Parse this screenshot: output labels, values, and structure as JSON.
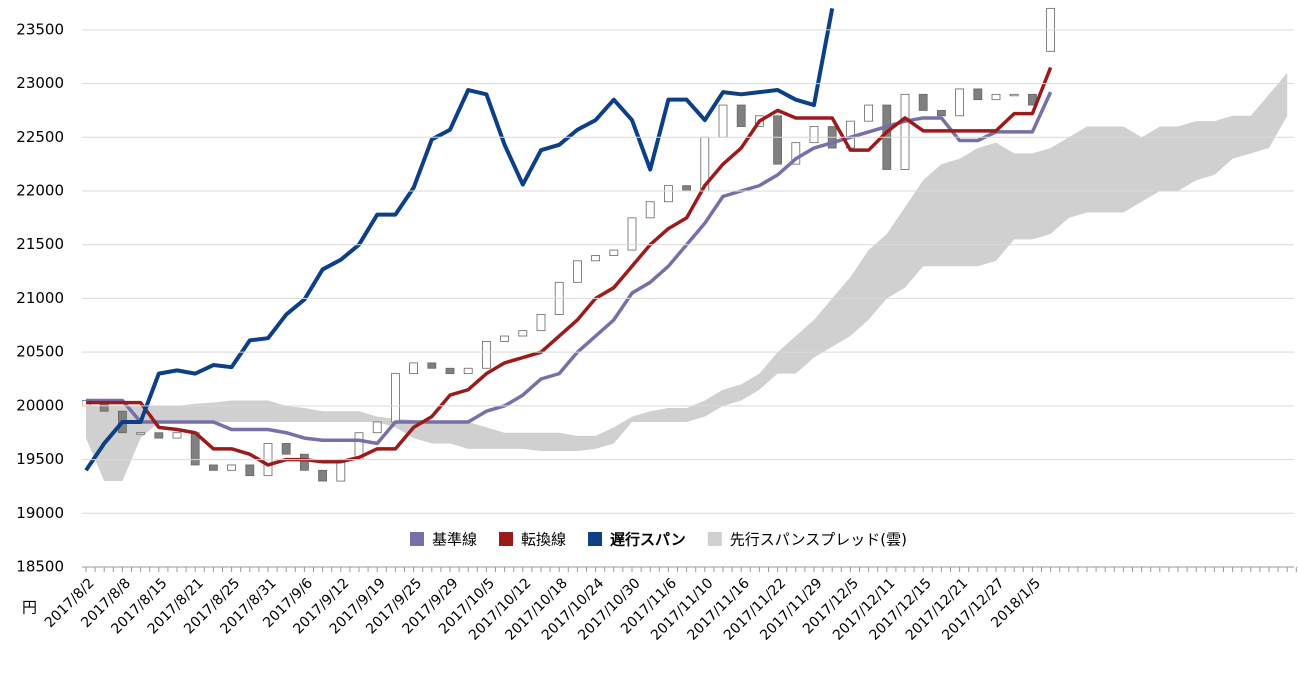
{
  "chart_data": {
    "type": "ichimoku",
    "y_unit": "円",
    "categories": [
      "2017/8/2",
      null,
      "2017/8/8",
      null,
      "2017/8/15",
      null,
      "2017/8/21",
      null,
      "2017/8/25",
      null,
      "2017/8/31",
      null,
      "2017/9/6",
      null,
      "2017/9/12",
      null,
      "2017/9/19",
      null,
      "2017/9/25",
      null,
      "2017/9/29",
      null,
      "2017/10/5",
      null,
      "2017/10/12",
      null,
      "2017/10/18",
      null,
      "2017/10/24",
      null,
      "2017/10/30",
      null,
      "2017/11/6",
      null,
      "2017/11/10",
      null,
      "2017/11/16",
      null,
      "2017/11/22",
      null,
      "2017/11/29",
      null,
      "2017/12/5",
      null,
      "2017/12/11",
      null,
      "2017/12/15",
      null,
      "2017/12/21",
      null,
      "2017/12/27",
      null,
      "2018/1/5",
      null,
      null,
      null,
      null,
      null,
      null,
      null,
      null,
      null,
      null,
      null,
      null,
      null,
      null
    ],
    "ylim": [
      18500,
      23750
    ],
    "yticks": [
      18500,
      19000,
      19500,
      20000,
      20500,
      21000,
      21500,
      22000,
      22500,
      23000,
      23500
    ],
    "grid": true,
    "candles": {
      "up_color": "#ffffff",
      "down_color": "#808080",
      "open": [
        20000,
        20050,
        19950,
        19750,
        19750,
        19700,
        19750,
        19450,
        19400,
        19450,
        19350,
        19650,
        19550,
        19400,
        19300,
        19500,
        19750,
        19850,
        20300,
        20400,
        20350,
        20300,
        20350,
        20600,
        20650,
        20700,
        20850,
        21150,
        21350,
        21400,
        21450,
        21750,
        21900,
        22050,
        22000,
        22500,
        22800,
        22600,
        22700,
        22250,
        22450,
        22600,
        22400,
        22650,
        22800,
        22200,
        22900,
        22750,
        22700,
        22950,
        22850,
        22900,
        22900,
        23300,
        null,
        null,
        null,
        null,
        null,
        null,
        null,
        null,
        null,
        null,
        null,
        null,
        null
      ],
      "close": [
        20050,
        19950,
        19750,
        19750,
        19700,
        19750,
        19450,
        19400,
        19450,
        19350,
        19650,
        19550,
        19400,
        19300,
        19500,
        19750,
        19850,
        20300,
        20400,
        20350,
        20300,
        20350,
        20600,
        20650,
        20700,
        20850,
        21150,
        21350,
        21400,
        21450,
        21750,
        21900,
        22050,
        22000,
        22500,
        22800,
        22600,
        22700,
        22250,
        22450,
        22600,
        22400,
        22650,
        22800,
        22200,
        22900,
        22750,
        22700,
        22950,
        22850,
        22900,
        22900,
        22800,
        23700,
        null,
        null,
        null,
        null,
        null,
        null,
        null,
        null,
        null,
        null,
        null,
        null,
        null
      ]
    },
    "series": [
      {
        "name": "基準線",
        "color": "#7570a8",
        "values": [
          20050,
          20050,
          20050,
          19850,
          19850,
          19850,
          19850,
          19850,
          19780,
          19780,
          19780,
          19750,
          19700,
          19680,
          19680,
          19680,
          19650,
          19850,
          19850,
          19850,
          19850,
          19850,
          19950,
          20000,
          20100,
          20250,
          20300,
          20500,
          20650,
          20800,
          21050,
          21150,
          21300,
          21500,
          21700,
          21950,
          22000,
          22050,
          22150,
          22300,
          22400,
          22450,
          22500,
          22550,
          22600,
          22650,
          22680,
          22680,
          22470,
          22470,
          22550,
          22550,
          22550,
          22920,
          null,
          null,
          null,
          null,
          null,
          null,
          null,
          null,
          null,
          null,
          null,
          null,
          null
        ]
      },
      {
        "name": "転換線",
        "color": "#9b1b1b",
        "values": [
          20030,
          20030,
          20030,
          20030,
          19800,
          19780,
          19750,
          19600,
          19600,
          19550,
          19450,
          19500,
          19500,
          19480,
          19480,
          19520,
          19600,
          19600,
          19800,
          19900,
          20100,
          20150,
          20300,
          20400,
          20450,
          20500,
          20650,
          20800,
          21000,
          21100,
          21300,
          21500,
          21650,
          21750,
          22050,
          22250,
          22400,
          22650,
          22750,
          22680,
          22680,
          22680,
          22380,
          22380,
          22550,
          22680,
          22560,
          22560,
          22560,
          22560,
          22560,
          22720,
          22720,
          23150,
          null,
          null,
          null,
          null,
          null,
          null,
          null,
          null,
          null,
          null,
          null,
          null,
          null
        ]
      },
      {
        "name": "遅行スパン",
        "color": "#0d3f86",
        "values": [
          19400,
          19650,
          19850,
          19850,
          20300,
          20330,
          20300,
          20380,
          20360,
          20610,
          20630,
          20850,
          20990,
          21270,
          21360,
          21500,
          21780,
          21780,
          22030,
          22480,
          22570,
          22940,
          22900,
          22430,
          22060,
          22380,
          22430,
          22570,
          22660,
          22850,
          22660,
          22200,
          22850,
          22850,
          22660,
          22920,
          22900,
          22920,
          22940,
          22850,
          22800,
          23700,
          null,
          null,
          null,
          null,
          null,
          null,
          null,
          null,
          null,
          null,
          null,
          null,
          null,
          null,
          null,
          null,
          null,
          null,
          null,
          null,
          null,
          null,
          null,
          null,
          null
        ]
      }
    ],
    "cloud": {
      "name": "先行スパンスプレッド(雲)",
      "color": "#d0d0d0",
      "high": [
        20000,
        20000,
        20000,
        20000,
        20000,
        20000,
        20020,
        20030,
        20050,
        20050,
        20050,
        20000,
        19980,
        19950,
        19950,
        19950,
        19900,
        19880,
        19870,
        19850,
        19850,
        19850,
        19800,
        19750,
        19750,
        19750,
        19750,
        19720,
        19720,
        19800,
        19900,
        19950,
        19980,
        19980,
        20050,
        20150,
        20200,
        20300,
        20500,
        20650,
        20800,
        21000,
        21200,
        21450,
        21600,
        21850,
        22100,
        22250,
        22300,
        22400,
        22450,
        22350,
        22350,
        22400,
        22500,
        22600,
        22600,
        22600,
        22500,
        22600,
        22600,
        22650,
        22650,
        22700,
        22700,
        22900,
        23100
      ],
      "low": [
        19700,
        19300,
        19300,
        19700,
        19850,
        19850,
        19850,
        19850,
        19850,
        19850,
        19850,
        19850,
        19850,
        19850,
        19850,
        19850,
        19850,
        19800,
        19700,
        19650,
        19650,
        19600,
        19600,
        19600,
        19600,
        19580,
        19580,
        19580,
        19600,
        19650,
        19850,
        19850,
        19850,
        19850,
        19900,
        20000,
        20050,
        20150,
        20300,
        20300,
        20450,
        20550,
        20650,
        20800,
        21000,
        21100,
        21300,
        21300,
        21300,
        21300,
        21350,
        21550,
        21550,
        21600,
        21750,
        21800,
        21800,
        21800,
        21900,
        22000,
        22000,
        22100,
        22150,
        22300,
        22350,
        22400,
        22700
      ]
    }
  }
}
